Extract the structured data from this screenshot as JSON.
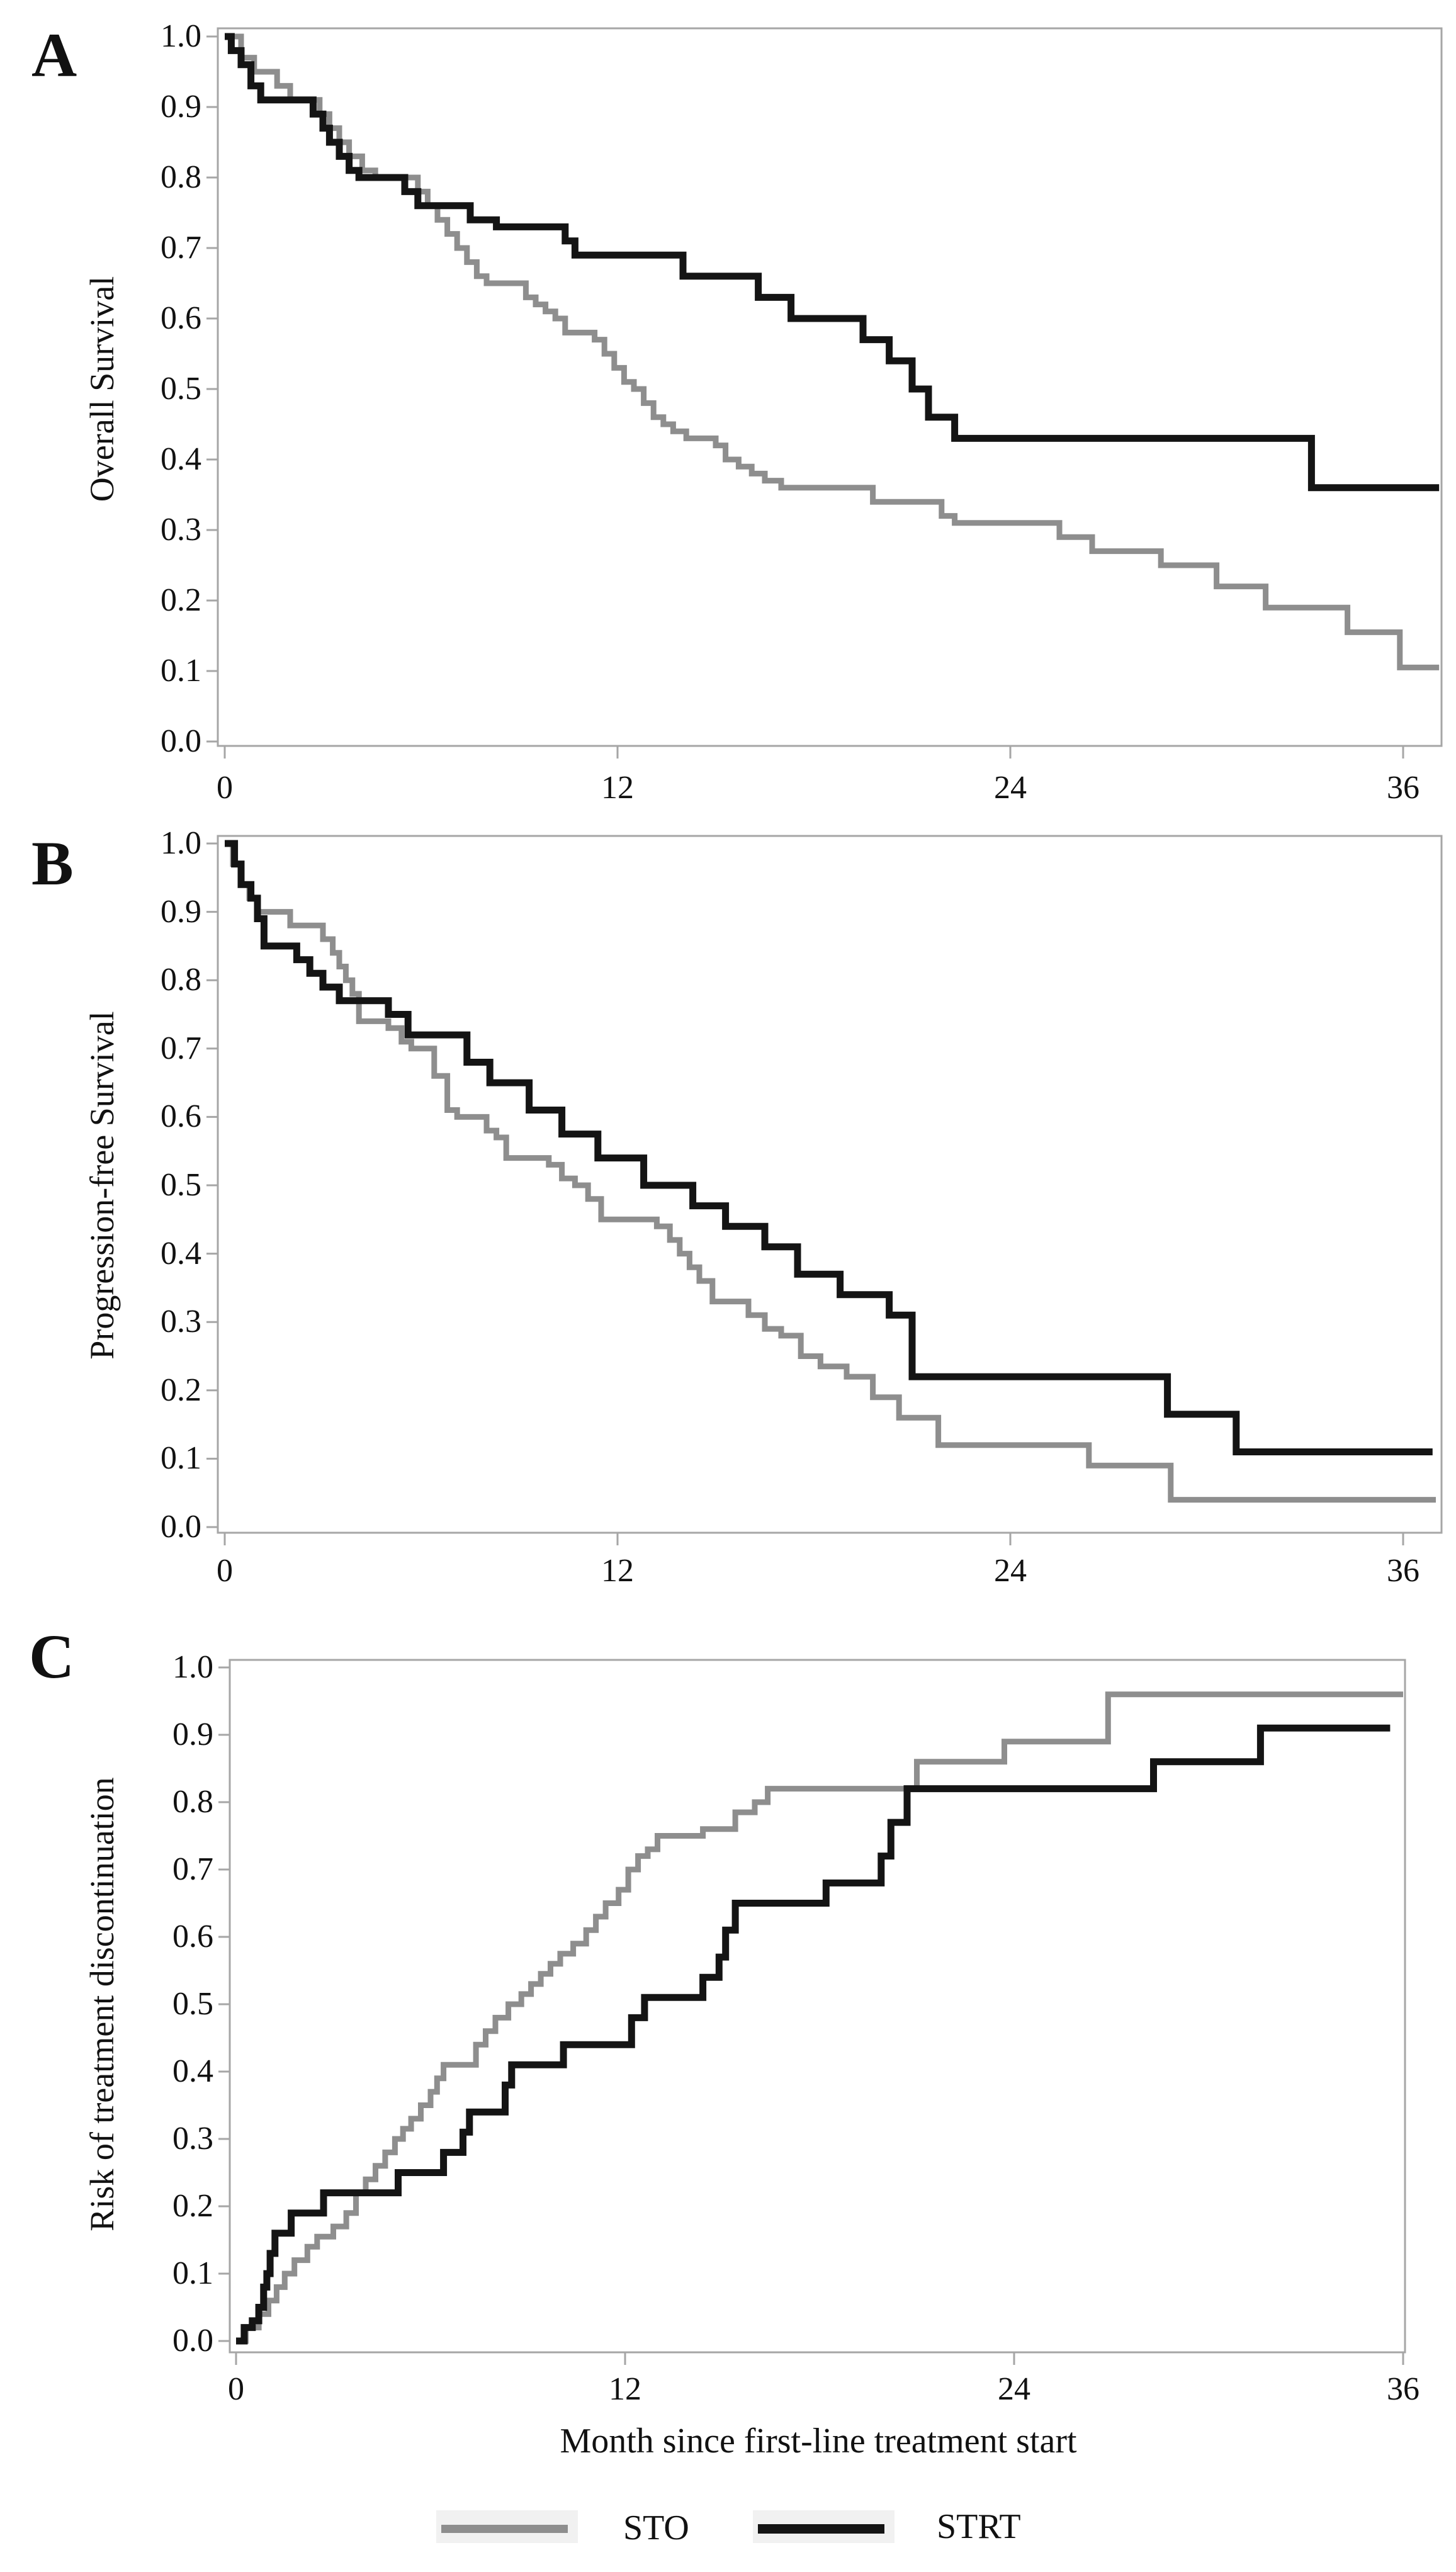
{
  "figure": {
    "background": "#ffffff",
    "frame_color": "#a6a6a6",
    "text_color": "#111111"
  },
  "x_axis": {
    "title": "Month since first-line treatment start"
  },
  "legend": {
    "position": "bottom",
    "items": [
      {
        "label": "STO",
        "color": "#8e8e8e"
      },
      {
        "label": "STRT",
        "color": "#141414"
      }
    ]
  },
  "chart_data": [
    {
      "type": "line",
      "subtype": "kaplan-meier-step",
      "panel_label": "A",
      "ylabel": "Overall Survival",
      "xlabel": "Month since first-line treatment start",
      "xlim": [
        0,
        37.2
      ],
      "ylim": [
        0.0,
        1.0
      ],
      "grid": false,
      "xticks": [
        "0",
        "12",
        "24",
        "36"
      ],
      "yticks": [
        "1.0",
        "0.9",
        "0.8",
        "0.7",
        "0.6",
        "0.5",
        "0.4",
        "0.3",
        "0.2",
        "0.1",
        "0.0"
      ],
      "series": [
        {
          "name": "STO",
          "color": "#8e8e8e",
          "end": 37.1,
          "steps": [
            [
              0,
              1.0
            ],
            [
              0.5,
              0.97
            ],
            [
              0.9,
              0.95
            ],
            [
              1.6,
              0.93
            ],
            [
              2.0,
              0.91
            ],
            [
              2.9,
              0.89
            ],
            [
              3.2,
              0.87
            ],
            [
              3.5,
              0.85
            ],
            [
              3.8,
              0.83
            ],
            [
              4.2,
              0.81
            ],
            [
              4.6,
              0.8
            ],
            [
              5.9,
              0.78
            ],
            [
              6.2,
              0.76
            ],
            [
              6.5,
              0.74
            ],
            [
              6.8,
              0.72
            ],
            [
              7.1,
              0.7
            ],
            [
              7.4,
              0.68
            ],
            [
              7.7,
              0.66
            ],
            [
              8.0,
              0.65
            ],
            [
              9.2,
              0.63
            ],
            [
              9.5,
              0.62
            ],
            [
              9.8,
              0.61
            ],
            [
              10.1,
              0.6
            ],
            [
              10.4,
              0.58
            ],
            [
              11.3,
              0.57
            ],
            [
              11.6,
              0.55
            ],
            [
              11.9,
              0.53
            ],
            [
              12.2,
              0.51
            ],
            [
              12.5,
              0.5
            ],
            [
              12.8,
              0.48
            ],
            [
              13.1,
              0.46
            ],
            [
              13.4,
              0.45
            ],
            [
              13.7,
              0.44
            ],
            [
              14.1,
              0.43
            ],
            [
              15.0,
              0.42
            ],
            [
              15.3,
              0.4
            ],
            [
              15.7,
              0.39
            ],
            [
              16.1,
              0.38
            ],
            [
              16.5,
              0.37
            ],
            [
              17.0,
              0.36
            ],
            [
              19.8,
              0.34
            ],
            [
              21.9,
              0.32
            ],
            [
              22.3,
              0.31
            ],
            [
              25.5,
              0.29
            ],
            [
              26.5,
              0.27
            ],
            [
              28.6,
              0.25
            ],
            [
              30.3,
              0.22
            ],
            [
              31.8,
              0.19
            ],
            [
              34.3,
              0.155
            ],
            [
              35.9,
              0.105
            ]
          ]
        },
        {
          "name": "STRT",
          "color": "#141414",
          "end": 37.1,
          "steps": [
            [
              0,
              1.0
            ],
            [
              0.2,
              0.98
            ],
            [
              0.5,
              0.96
            ],
            [
              0.8,
              0.93
            ],
            [
              1.1,
              0.91
            ],
            [
              2.7,
              0.89
            ],
            [
              3.0,
              0.87
            ],
            [
              3.2,
              0.85
            ],
            [
              3.5,
              0.83
            ],
            [
              3.8,
              0.81
            ],
            [
              4.1,
              0.8
            ],
            [
              5.5,
              0.78
            ],
            [
              5.9,
              0.76
            ],
            [
              7.5,
              0.74
            ],
            [
              8.3,
              0.73
            ],
            [
              10.4,
              0.71
            ],
            [
              10.7,
              0.69
            ],
            [
              14.0,
              0.66
            ],
            [
              16.3,
              0.63
            ],
            [
              17.3,
              0.6
            ],
            [
              19.5,
              0.57
            ],
            [
              20.3,
              0.54
            ],
            [
              21.0,
              0.5
            ],
            [
              21.5,
              0.46
            ],
            [
              22.3,
              0.43
            ],
            [
              33.2,
              0.36
            ]
          ]
        }
      ]
    },
    {
      "type": "line",
      "subtype": "kaplan-meier-step",
      "panel_label": "B",
      "ylabel": "Progression-free Survival",
      "xlabel": "Month since first-line treatment start",
      "xlim": [
        0,
        37.2
      ],
      "ylim": [
        0.0,
        1.0
      ],
      "grid": false,
      "xticks": [
        "0",
        "12",
        "24",
        "36"
      ],
      "yticks": [
        "1.0",
        "0.9",
        "0.8",
        "0.7",
        "0.6",
        "0.5",
        "0.4",
        "0.3",
        "0.2",
        "0.1",
        "0.0"
      ],
      "series": [
        {
          "name": "STO",
          "color": "#8e8e8e",
          "end": 37.0,
          "steps": [
            [
              0,
              1.0
            ],
            [
              0.25,
              0.97
            ],
            [
              0.5,
              0.94
            ],
            [
              0.75,
              0.92
            ],
            [
              1.0,
              0.9
            ],
            [
              2.0,
              0.88
            ],
            [
              3.0,
              0.86
            ],
            [
              3.3,
              0.84
            ],
            [
              3.5,
              0.82
            ],
            [
              3.7,
              0.8
            ],
            [
              3.9,
              0.78
            ],
            [
              4.1,
              0.74
            ],
            [
              5.0,
              0.73
            ],
            [
              5.4,
              0.71
            ],
            [
              5.7,
              0.7
            ],
            [
              6.4,
              0.66
            ],
            [
              6.8,
              0.61
            ],
            [
              7.1,
              0.6
            ],
            [
              8.0,
              0.58
            ],
            [
              8.3,
              0.57
            ],
            [
              8.6,
              0.54
            ],
            [
              9.9,
              0.53
            ],
            [
              10.3,
              0.51
            ],
            [
              10.7,
              0.5
            ],
            [
              11.1,
              0.48
            ],
            [
              11.5,
              0.45
            ],
            [
              13.2,
              0.44
            ],
            [
              13.6,
              0.42
            ],
            [
              13.9,
              0.4
            ],
            [
              14.2,
              0.38
            ],
            [
              14.5,
              0.36
            ],
            [
              14.9,
              0.33
            ],
            [
              16.0,
              0.31
            ],
            [
              16.5,
              0.29
            ],
            [
              17.0,
              0.28
            ],
            [
              17.6,
              0.25
            ],
            [
              18.2,
              0.235
            ],
            [
              19.0,
              0.22
            ],
            [
              19.8,
              0.19
            ],
            [
              20.6,
              0.16
            ],
            [
              21.8,
              0.12
            ],
            [
              26.4,
              0.09
            ],
            [
              28.9,
              0.04
            ]
          ]
        },
        {
          "name": "STRT",
          "color": "#141414",
          "end": 36.9,
          "steps": [
            [
              0,
              1.0
            ],
            [
              0.3,
              0.97
            ],
            [
              0.5,
              0.94
            ],
            [
              0.8,
              0.92
            ],
            [
              1.0,
              0.89
            ],
            [
              1.2,
              0.85
            ],
            [
              2.2,
              0.83
            ],
            [
              2.6,
              0.81
            ],
            [
              3.0,
              0.79
            ],
            [
              3.5,
              0.77
            ],
            [
              5.0,
              0.75
            ],
            [
              5.6,
              0.72
            ],
            [
              7.4,
              0.68
            ],
            [
              8.1,
              0.65
            ],
            [
              9.3,
              0.61
            ],
            [
              10.3,
              0.575
            ],
            [
              11.4,
              0.54
            ],
            [
              12.8,
              0.5
            ],
            [
              14.3,
              0.47
            ],
            [
              15.3,
              0.44
            ],
            [
              16.5,
              0.41
            ],
            [
              17.5,
              0.37
            ],
            [
              18.8,
              0.34
            ],
            [
              20.3,
              0.31
            ],
            [
              21.0,
              0.22
            ],
            [
              28.8,
              0.165
            ],
            [
              30.9,
              0.11
            ]
          ]
        }
      ]
    },
    {
      "type": "line",
      "subtype": "cumulative-incidence-step",
      "panel_label": "C",
      "ylabel": "Risk of treatment discontinuation",
      "xlabel": "Month since first-line treatment start",
      "xlim": [
        0,
        36.1
      ],
      "ylim": [
        0.0,
        1.0
      ],
      "grid": false,
      "xticks": [
        "0",
        "12",
        "24",
        "36"
      ],
      "yticks": [
        "1.0",
        "0.9",
        "0.8",
        "0.7",
        "0.6",
        "0.5",
        "0.4",
        "0.3",
        "0.2",
        "0.1",
        "0.0"
      ],
      "series": [
        {
          "name": "STO",
          "color": "#8e8e8e",
          "end": 36.0,
          "steps": [
            [
              0,
              0.0
            ],
            [
              0.3,
              0.02
            ],
            [
              0.7,
              0.04
            ],
            [
              1.0,
              0.06
            ],
            [
              1.25,
              0.08
            ],
            [
              1.5,
              0.1
            ],
            [
              1.8,
              0.12
            ],
            [
              2.2,
              0.14
            ],
            [
              2.5,
              0.155
            ],
            [
              3.0,
              0.17
            ],
            [
              3.4,
              0.19
            ],
            [
              3.7,
              0.22
            ],
            [
              4.0,
              0.24
            ],
            [
              4.3,
              0.26
            ],
            [
              4.6,
              0.28
            ],
            [
              4.9,
              0.3
            ],
            [
              5.15,
              0.315
            ],
            [
              5.4,
              0.33
            ],
            [
              5.7,
              0.35
            ],
            [
              6.0,
              0.37
            ],
            [
              6.2,
              0.39
            ],
            [
              6.4,
              0.41
            ],
            [
              7.4,
              0.44
            ],
            [
              7.7,
              0.46
            ],
            [
              8.0,
              0.48
            ],
            [
              8.4,
              0.5
            ],
            [
              8.8,
              0.515
            ],
            [
              9.1,
              0.53
            ],
            [
              9.4,
              0.545
            ],
            [
              9.7,
              0.56
            ],
            [
              10.0,
              0.575
            ],
            [
              10.4,
              0.59
            ],
            [
              10.8,
              0.61
            ],
            [
              11.1,
              0.63
            ],
            [
              11.4,
              0.65
            ],
            [
              11.8,
              0.67
            ],
            [
              12.1,
              0.7
            ],
            [
              12.4,
              0.72
            ],
            [
              12.7,
              0.73
            ],
            [
              13.0,
              0.75
            ],
            [
              14.4,
              0.76
            ],
            [
              15.4,
              0.785
            ],
            [
              16.0,
              0.8
            ],
            [
              16.4,
              0.82
            ],
            [
              21.0,
              0.86
            ],
            [
              23.7,
              0.89
            ],
            [
              26.9,
              0.96
            ]
          ]
        },
        {
          "name": "STRT",
          "color": "#141414",
          "end": 35.6,
          "steps": [
            [
              0,
              0.0
            ],
            [
              0.25,
              0.02
            ],
            [
              0.5,
              0.03
            ],
            [
              0.7,
              0.05
            ],
            [
              0.85,
              0.08
            ],
            [
              0.95,
              0.1
            ],
            [
              1.05,
              0.13
            ],
            [
              1.2,
              0.16
            ],
            [
              1.7,
              0.19
            ],
            [
              2.7,
              0.22
            ],
            [
              5.0,
              0.25
            ],
            [
              6.4,
              0.28
            ],
            [
              7.0,
              0.31
            ],
            [
              7.2,
              0.34
            ],
            [
              8.3,
              0.38
            ],
            [
              8.5,
              0.41
            ],
            [
              10.1,
              0.44
            ],
            [
              12.2,
              0.48
            ],
            [
              12.6,
              0.51
            ],
            [
              14.4,
              0.54
            ],
            [
              14.9,
              0.57
            ],
            [
              15.1,
              0.61
            ],
            [
              15.4,
              0.65
            ],
            [
              18.2,
              0.68
            ],
            [
              19.9,
              0.72
            ],
            [
              20.2,
              0.77
            ],
            [
              20.7,
              0.82
            ],
            [
              28.3,
              0.86
            ],
            [
              31.6,
              0.91
            ]
          ]
        }
      ]
    }
  ]
}
